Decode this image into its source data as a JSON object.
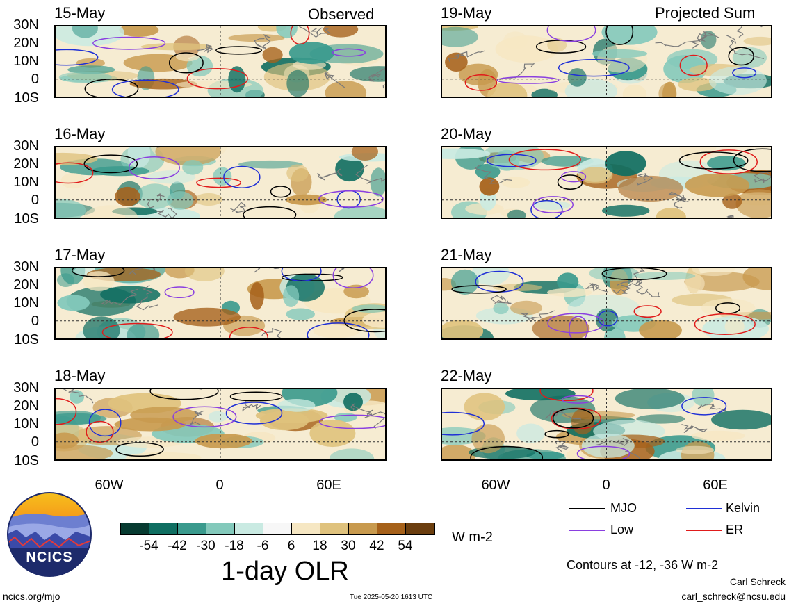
{
  "header": {
    "left_title": "Observed",
    "right_title": "Projected Sum"
  },
  "panels_left": [
    {
      "date": "15-May"
    },
    {
      "date": "16-May"
    },
    {
      "date": "17-May"
    },
    {
      "date": "18-May"
    }
  ],
  "panels_right": [
    {
      "date": "19-May"
    },
    {
      "date": "20-May"
    },
    {
      "date": "21-May"
    },
    {
      "date": "22-May"
    }
  ],
  "lat_labels": [
    "30N",
    "20N",
    "10N",
    "0",
    "10S"
  ],
  "lon_labels": [
    "60W",
    "0",
    "60E"
  ],
  "colorbar": {
    "colors": [
      "#073b31",
      "#0f6e61",
      "#3a9a8d",
      "#83c9bb",
      "#c9eae2",
      "#f7f7f7",
      "#f6e7c3",
      "#dfc27d",
      "#c89a4e",
      "#a6611a",
      "#6b3e0f"
    ],
    "tick_labels": [
      "-54",
      "-42",
      "-30",
      "-18",
      "-6",
      "6",
      "18",
      "30",
      "42",
      "54"
    ],
    "units": "W m-2",
    "title": "1-day OLR"
  },
  "legend": {
    "items": [
      {
        "label": "MJO",
        "color": "#000000"
      },
      {
        "label": "Kelvin",
        "color": "#1f2fd6"
      },
      {
        "label": "Low",
        "color": "#8a3fe0"
      },
      {
        "label": "ER",
        "color": "#e01b1b"
      }
    ],
    "contour_note": "Contours at -12, -36 W m-2"
  },
  "logo": {
    "text": "NCICS"
  },
  "footer": {
    "url": "ncics.org/mjo",
    "timestamp": "Tue 2025-05-20 1613 UTC",
    "author": "Carl Schreck",
    "email": "carl_schreck@ncsu.edu"
  }
}
